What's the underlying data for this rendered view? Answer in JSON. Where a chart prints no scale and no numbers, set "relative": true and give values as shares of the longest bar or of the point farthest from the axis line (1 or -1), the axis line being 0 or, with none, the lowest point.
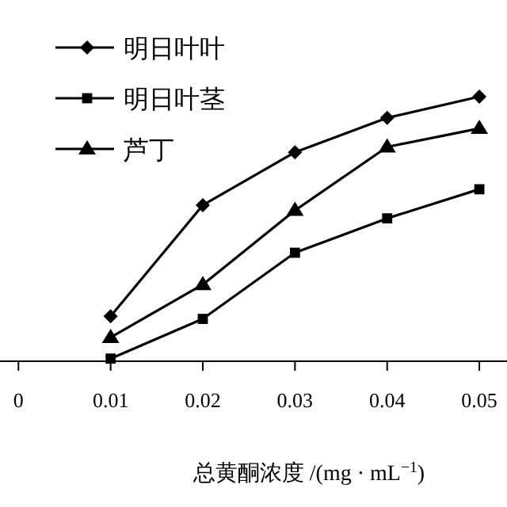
{
  "chart_data": {
    "type": "line",
    "relative": true,
    "xlabel": "总黄酮浓度 /(mg · mL$^{−1}$)",
    "x": [
      0.01,
      0.02,
      0.03,
      0.04,
      0.05
    ],
    "xlim": [
      -0.002,
      0.053
    ],
    "xticks": [
      0,
      0.01,
      0.02,
      0.03,
      0.04,
      0.05
    ],
    "legend": "top left",
    "tick_labels": "x",
    "series": [
      {
        "name": "明日叶叶",
        "color": "#000000",
        "marker": "diamond",
        "values": [
          0.17,
          0.59,
          0.79,
          0.92,
          1
        ]
      },
      {
        "name": "明日叶茎",
        "color": "#000000",
        "marker": "square",
        "values": [
          0.01,
          0.16,
          0.41,
          0.54,
          0.65
        ]
      },
      {
        "name": "芦丁",
        "color": "#000000",
        "marker": "triangle",
        "values": [
          0.09,
          0.29,
          0.57,
          0.81,
          0.88
        ]
      }
    ]
  }
}
